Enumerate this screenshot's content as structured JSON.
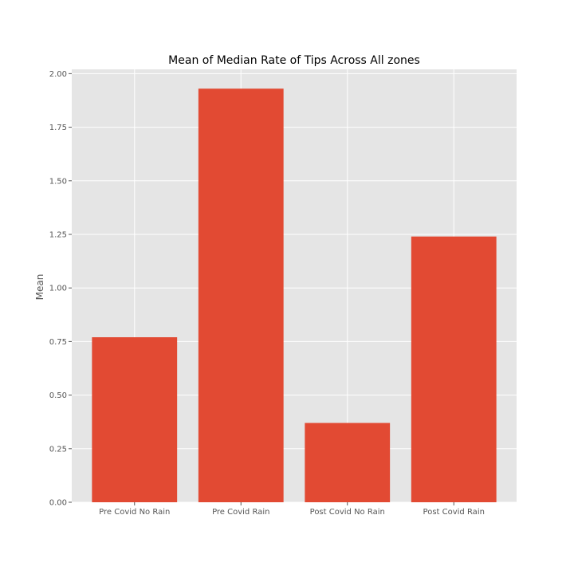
{
  "chart_data": {
    "type": "bar",
    "title": "Mean of Median Rate of Tips Across All zones",
    "xlabel": "",
    "ylabel": "Mean",
    "categories": [
      "Pre Covid No Rain",
      "Pre Covid Rain",
      "Post Covid No Rain",
      "Post Covid Rain"
    ],
    "values": [
      0.77,
      1.93,
      0.37,
      1.24
    ],
    "ylim": [
      0,
      2.02
    ],
    "yticks": [
      "0.00",
      "0.25",
      "0.50",
      "0.75",
      "1.00",
      "1.25",
      "1.50",
      "1.75",
      "2.00"
    ],
    "grid": true,
    "legend": "none",
    "colors": {
      "bar": "#E24A33",
      "plot_background": "#E5E5E5",
      "grid": "#FFFFFF"
    }
  }
}
